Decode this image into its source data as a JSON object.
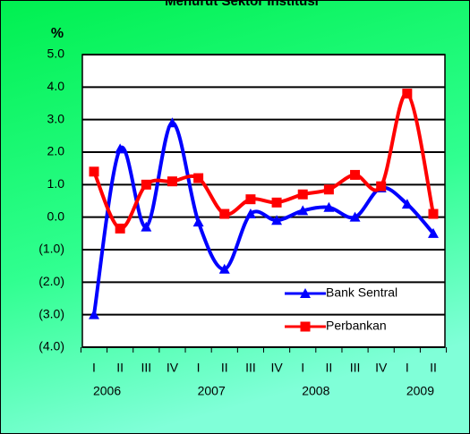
{
  "chart_data": {
    "type": "line",
    "title": "Menurut Sektor Institusi",
    "y_label": "%",
    "categories": [
      "I",
      "II",
      "III",
      "IV",
      "I",
      "II",
      "III",
      "IV",
      "I",
      "II",
      "III",
      "IV",
      "I",
      "II"
    ],
    "year_labels": [
      "2006",
      "2007",
      "2008",
      "2009"
    ],
    "series": [
      {
        "name": "Bank Sentral",
        "color": "#0000ff",
        "marker": "triangle",
        "values": [
          -3.0,
          2.1,
          -0.3,
          2.9,
          -0.15,
          -1.6,
          0.1,
          -0.1,
          0.2,
          0.3,
          0.0,
          0.9,
          0.4,
          -0.5
        ]
      },
      {
        "name": "Perbankan",
        "color": "#ff0000",
        "marker": "square",
        "values": [
          1.4,
          -0.35,
          1.0,
          1.1,
          1.2,
          0.1,
          0.55,
          0.45,
          0.7,
          0.85,
          1.3,
          0.95,
          3.8,
          0.1
        ]
      }
    ],
    "ylim": [
      -4,
      5
    ],
    "yticks": [
      {
        "value": -4,
        "label": "(4.0)"
      },
      {
        "value": -3,
        "label": "(3.0)"
      },
      {
        "value": -2,
        "label": "(2.0)"
      },
      {
        "value": -1,
        "label": "(1.0)"
      },
      {
        "value": 0,
        "label": "0.0"
      },
      {
        "value": 1,
        "label": "1.0"
      },
      {
        "value": 2,
        "label": "2.0"
      },
      {
        "value": 3,
        "label": "3.0"
      },
      {
        "value": 4,
        "label": "4.0"
      },
      {
        "value": 5,
        "label": "5.0"
      }
    ],
    "grid": true,
    "smooth": true,
    "legend": "lower right"
  }
}
